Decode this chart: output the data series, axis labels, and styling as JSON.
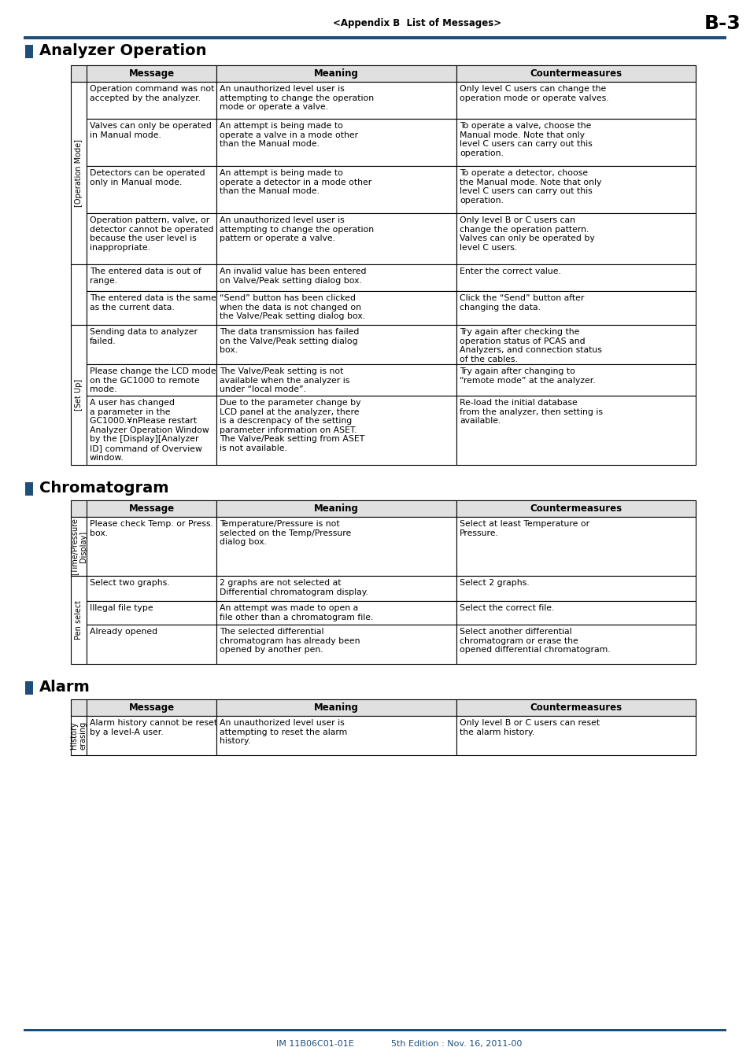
{
  "page_header_left": "<Appendix B  List of Messages>",
  "page_header_right": "B-3",
  "header_line_color": "#1f4e79",
  "section_marker_color": "#1f4e79",
  "footer_left": "IM 11B06C01-01E",
  "footer_right": "5th Edition : Nov. 16, 2011-00",
  "footer_color": "#1f4e79",
  "col_headers": [
    "Message",
    "Meaning",
    "Countermeasures"
  ],
  "analyzer_op_mode_rows": [
    [
      "Operation command was not\naccepted by the analyzer.",
      "An unauthorized level user is\nattempting to change the operation\nmode or operate a valve.",
      "Only level C users can change the\noperation mode or operate valves."
    ],
    [
      "Valves can only be operated\nin Manual mode.",
      "An attempt is being made to\noperate a valve in a mode other\nthan the Manual mode.",
      "To operate a valve, choose the\nManual mode. Note that only\nlevel C users can carry out this\noperation."
    ],
    [
      "Detectors can be operated\nonly in Manual mode.",
      "An attempt is being made to\noperate a detector in a mode other\nthan the Manual mode.",
      "To operate a detector, choose\nthe Manual mode. Note that only\nlevel C users can carry out this\noperation."
    ],
    [
      "Operation pattern, valve, or\ndetector cannot be operated\nbecause the user level is\ninappropriate.",
      "An unauthorized level user is\nattempting to change the operation\npattern or operate a valve.",
      "Only level B or C users can\nchange the operation pattern.\nValves can only be operated by\nlevel C users."
    ]
  ],
  "analyzer_nolabel_rows": [
    [
      "The entered data is out of\nrange.",
      "An invalid value has been entered\non Valve/Peak setting dialog box.",
      "Enter the correct value."
    ],
    [
      "The entered data is the same\nas the current data.",
      "“Send” button has been clicked\nwhen the data is not changed on\nthe Valve/Peak setting dialog box.",
      "Click the “Send” button after\nchanging the data."
    ]
  ],
  "analyzer_setup_rows": [
    [
      "Sending data to analyzer\nfailed.",
      "The data transmission has failed\non the Valve/Peak setting dialog\nbox.",
      "Try again after checking the\noperation status of PCAS and\nAnalyzers, and connection status\nof the cables."
    ],
    [
      "Please change the LCD mode\non the GC1000 to remote\nmode.",
      "The Valve/Peak setting is not\navailable when the analyzer is\nunder “local mode”.",
      "Try again after changing to\n“remote mode” at the analyzer."
    ],
    [
      "A user has changed\na parameter in the\nGC1000.¥nPlease restart\nAnalyzer Operation Window\nby the [Display][Analyzer\nID] command of Overview\nwindow.",
      "Due to the parameter change by\nLCD panel at the analyzer, there\nis a descrenpacy of the setting\nparameter information on ASET.\nThe Valve/Peak setting from ASET\nis not available.",
      "Re-load the initial database\nfrom the analyzer, then setting is\navailable."
    ]
  ],
  "chroma_tpd_rows": [
    [
      "Please check Temp. or Press.\nbox.",
      "Temperature/Pressure is not\nselected on the Temp/Pressure\ndialog box.",
      "Select at least Temperature or\nPressure."
    ]
  ],
  "chroma_pen_rows": [
    [
      "Select two graphs.",
      "2 graphs are not selected at\nDifferential chromatogram display.",
      "Select 2 graphs."
    ],
    [
      "Illegal file type",
      "An attempt was made to open a\nfile other than a chromatogram file.",
      "Select the correct file."
    ],
    [
      "Already opened",
      "The selected differential\nchromatogram has already been\nopened by another pen.",
      "Select another differential\nchromatogram or erase the\nopened differential chromatogram."
    ]
  ],
  "alarm_history_rows": [
    [
      "Alarm history cannot be reset\nby a level-A user.",
      "An unauthorized level user is\nattempting to reset the alarm\nhistory.",
      "Only level B or C users can reset\nthe alarm history."
    ]
  ]
}
